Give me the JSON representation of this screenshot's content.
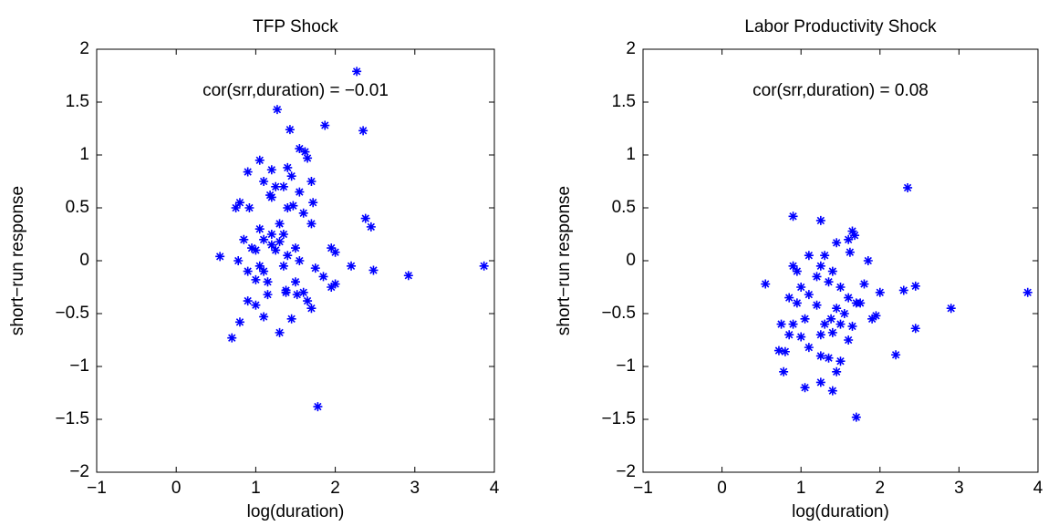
{
  "chart_data": [
    {
      "type": "scatter",
      "title": "TFP Shock",
      "x_label": "log(duration)",
      "y_label": "short−run response",
      "annotation": "cor(srr,duration) = −0.01",
      "color": "#0000ff",
      "xlim": [
        -1,
        4
      ],
      "ylim": [
        -2,
        2
      ],
      "xticks": [
        {
          "value": -1,
          "label": "−1"
        },
        0,
        1,
        2,
        3,
        4
      ],
      "yticks": [
        {
          "value": -2,
          "label": "−2"
        },
        {
          "value": -1.5,
          "label": "−1.5"
        },
        {
          "value": -1,
          "label": "−1"
        },
        {
          "value": -0.5,
          "label": "−0.5"
        },
        0,
        0.5,
        1,
        1.5,
        2
      ],
      "x": [
        2.27,
        1.27,
        2.35,
        1.87,
        1.43,
        1.55,
        1.62,
        1.65,
        1.05,
        0.9,
        1.2,
        1.4,
        1.45,
        1.35,
        1.1,
        1.25,
        1.18,
        1.2,
        1.55,
        1.7,
        1.72,
        0.8,
        0.75,
        0.92,
        1.4,
        1.47,
        1.6,
        2.38,
        2.45,
        1.05,
        1.3,
        1.35,
        1.1,
        1.2,
        1.7,
        0.85,
        0.95,
        1.0,
        1.2,
        1.25,
        1.3,
        1.4,
        1.5,
        1.55,
        1.95,
        2.0,
        0.55,
        0.78,
        1.05,
        1.1,
        1.35,
        1.75,
        2.2,
        2.48,
        2.92,
        3.87,
        0.9,
        1.0,
        1.15,
        1.5,
        1.85,
        2.0,
        1.38,
        1.52,
        1.65,
        1.95,
        0.9,
        1.0,
        1.15,
        1.7,
        1.45,
        1.1,
        0.8,
        1.3,
        0.7,
        1.78,
        1.6,
        1.38
      ],
      "values": [
        1.79,
        1.43,
        1.23,
        1.28,
        1.24,
        1.06,
        1.03,
        0.97,
        0.95,
        0.84,
        0.86,
        0.88,
        0.8,
        0.7,
        0.75,
        0.7,
        0.62,
        0.6,
        0.65,
        0.75,
        0.55,
        0.55,
        0.5,
        0.5,
        0.5,
        0.52,
        0.45,
        0.4,
        0.32,
        0.3,
        0.35,
        0.25,
        0.2,
        0.25,
        0.35,
        0.2,
        0.12,
        0.1,
        0.15,
        0.1,
        0.18,
        0.05,
        0.12,
        0.0,
        0.12,
        0.08,
        0.04,
        0.0,
        -0.05,
        -0.1,
        -0.05,
        -0.07,
        -0.05,
        -0.09,
        -0.14,
        -0.05,
        -0.1,
        -0.18,
        -0.2,
        -0.2,
        -0.15,
        -0.22,
        -0.28,
        -0.32,
        -0.38,
        -0.25,
        -0.38,
        -0.42,
        -0.32,
        -0.45,
        -0.55,
        -0.53,
        -0.58,
        -0.68,
        -0.73,
        -1.38,
        -0.3,
        -0.3
      ]
    },
    {
      "type": "scatter",
      "title": "Labor Productivity Shock",
      "x_label": "log(duration)",
      "y_label": "short−run response",
      "annotation": "cor(srr,duration) = 0.08",
      "color": "#0000ff",
      "xlim": [
        -1,
        4
      ],
      "ylim": [
        -2,
        2
      ],
      "xticks": [
        {
          "value": -1,
          "label": "−1"
        },
        0,
        1,
        2,
        3,
        4
      ],
      "yticks": [
        {
          "value": -2,
          "label": "−2"
        },
        {
          "value": -1.5,
          "label": "−1.5"
        },
        {
          "value": -1,
          "label": "−1"
        },
        {
          "value": -0.5,
          "label": "−0.5"
        },
        0,
        0.5,
        1,
        1.5,
        2
      ],
      "x": [
        2.35,
        0.9,
        1.25,
        1.65,
        1.68,
        1.6,
        1.45,
        1.1,
        1.3,
        1.62,
        1.85,
        0.9,
        1.25,
        1.4,
        0.55,
        0.95,
        1.2,
        1.35,
        1.5,
        1.8,
        2.45,
        2.3,
        1.0,
        1.1,
        1.6,
        1.75,
        2.0,
        3.87,
        0.85,
        0.95,
        1.2,
        1.45,
        1.55,
        1.9,
        1.95,
        2.9,
        0.75,
        0.9,
        1.05,
        1.3,
        1.5,
        1.65,
        2.45,
        0.85,
        1.0,
        1.25,
        1.4,
        1.6,
        0.72,
        0.8,
        1.1,
        1.25,
        1.35,
        1.5,
        2.2,
        0.78,
        1.45,
        1.05,
        1.25,
        1.4,
        1.7,
        1.7,
        1.38
      ],
      "values": [
        0.69,
        0.42,
        0.38,
        0.28,
        0.24,
        0.2,
        0.17,
        0.05,
        0.05,
        0.08,
        0.0,
        -0.05,
        -0.05,
        -0.1,
        -0.22,
        -0.1,
        -0.15,
        -0.2,
        -0.25,
        -0.22,
        -0.24,
        -0.28,
        -0.25,
        -0.32,
        -0.35,
        -0.4,
        -0.3,
        -0.3,
        -0.35,
        -0.4,
        -0.42,
        -0.45,
        -0.5,
        -0.55,
        -0.52,
        -0.45,
        -0.6,
        -0.6,
        -0.55,
        -0.6,
        -0.6,
        -0.62,
        -0.64,
        -0.7,
        -0.72,
        -0.7,
        -0.68,
        -0.75,
        -0.85,
        -0.86,
        -0.82,
        -0.9,
        -0.92,
        -0.95,
        -0.89,
        -1.05,
        -1.05,
        -1.2,
        -1.15,
        -1.23,
        -1.48,
        -0.4,
        -0.55
      ]
    }
  ]
}
